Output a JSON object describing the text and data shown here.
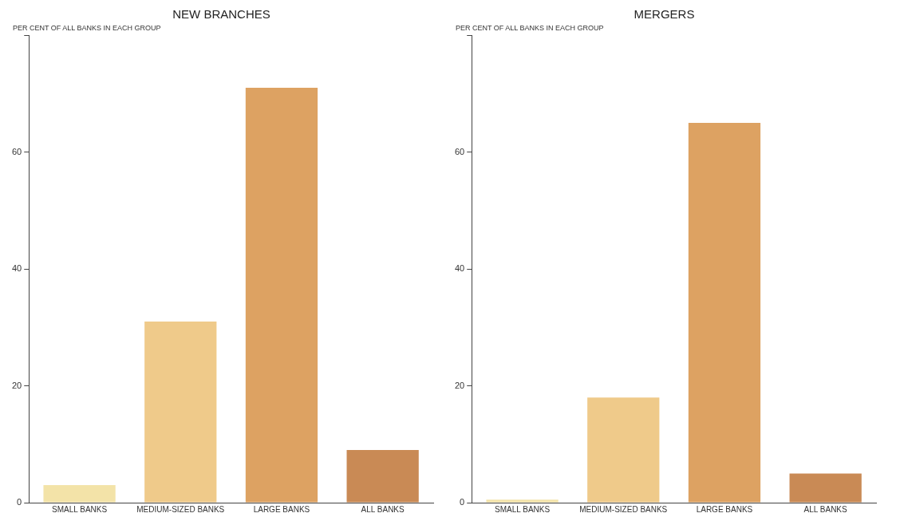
{
  "chart_data": [
    {
      "type": "bar",
      "title": "NEW BRANCHES",
      "ylabel": "PER CENT OF ALL BANKS IN EACH GROUP",
      "categories": [
        "SMALL BANKS",
        "MEDIUM-SIZED BANKS",
        "LARGE BANKS",
        "ALL BANKS"
      ],
      "values": [
        3,
        31,
        71,
        9
      ],
      "colors": [
        "#f3e3a8",
        "#efca8a",
        "#dda262",
        "#c98a55"
      ],
      "ylim": [
        0,
        80
      ],
      "yticks": [
        0,
        20,
        40,
        60,
        {
          "value": 80,
          "label": null
        }
      ],
      "grid": false,
      "legend": false
    },
    {
      "type": "bar",
      "title": "MERGERS",
      "ylabel": "PER CENT OF ALL BANKS IN EACH GROUP",
      "categories": [
        "SMALL BANKS",
        "MEDIUM-SIZED BANKS",
        "LARGE BANKS",
        "ALL BANKS"
      ],
      "values": [
        0.5,
        18,
        65,
        5
      ],
      "colors": [
        "#f3e3a8",
        "#efca8a",
        "#dda262",
        "#c98a55"
      ],
      "ylim": [
        0,
        80
      ],
      "yticks": [
        0,
        20,
        40,
        60,
        {
          "value": 80,
          "label": null
        }
      ],
      "grid": false,
      "legend": false
    }
  ]
}
